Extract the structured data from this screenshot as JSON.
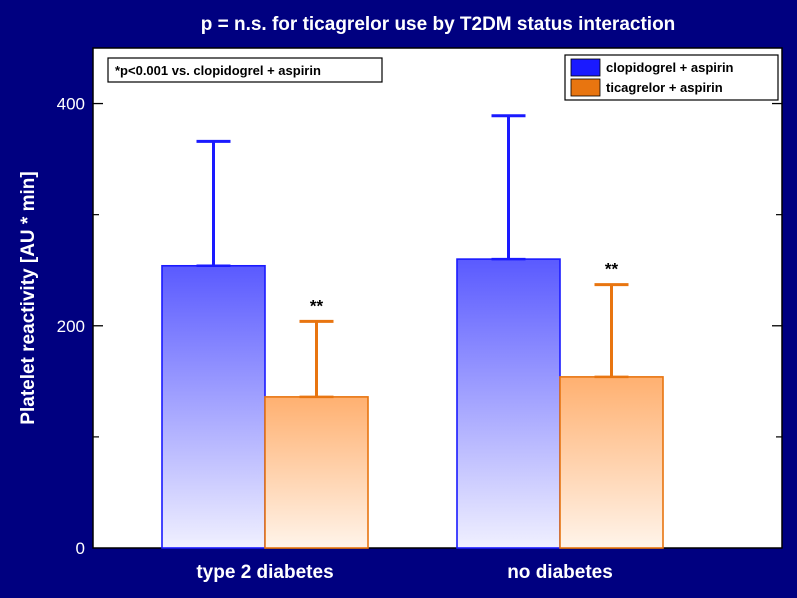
{
  "chart_data": {
    "type": "bar",
    "title": "p = n.s. for ticagrelor use by T2DM status interaction",
    "ylabel": "Platelet reactivity  [AU * min]",
    "xlabel": "",
    "ylim": [
      0,
      450
    ],
    "yticks_major": [
      0,
      200,
      400
    ],
    "yticks_labeled": [
      "0",
      "200",
      "400"
    ],
    "yticks_minor": [
      100,
      300
    ],
    "categories": [
      "type 2 diabetes",
      "no diabetes"
    ],
    "series": [
      {
        "name": "clopidogrel + aspirin",
        "color": "#1a1aff",
        "fill_top": "#5a5aff",
        "fill_bottom": "#f0f0ff",
        "values": [
          254,
          260
        ],
        "error_upper": [
          366,
          389
        ]
      },
      {
        "name": "ticagrelor + aspirin",
        "color": "#e87510",
        "fill_top": "#ffb070",
        "fill_bottom": "#fff4ea",
        "values": [
          136,
          154
        ],
        "error_upper": [
          204,
          237
        ]
      }
    ],
    "significance_marks": [
      "**",
      "**"
    ],
    "annotation": "*p<0.001 vs. clopidogrel + aspirin",
    "legend_position": "top-right"
  }
}
